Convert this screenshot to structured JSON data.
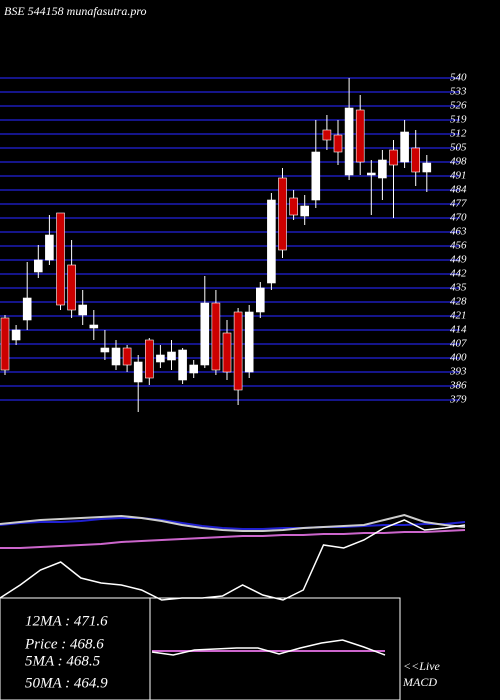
{
  "chart_data": [
    {
      "type": "candlestick",
      "title": "BSE 544158 munafasutra.pro",
      "ylim": [
        374,
        540.5
      ],
      "yticks": [
        540,
        533,
        526,
        519,
        512,
        505,
        498,
        491,
        484,
        477,
        470,
        463,
        456,
        449,
        442,
        435,
        428,
        421,
        414,
        407,
        400,
        393,
        386,
        379
      ],
      "grid": true,
      "grid_color": "#15158a",
      "up_color": "#ffffff",
      "down_color": "#cc0000",
      "open": [
        420,
        409,
        419,
        443,
        449,
        472.5,
        446.5,
        421.5,
        415,
        403,
        396.5,
        405,
        388,
        409,
        398,
        399,
        389,
        392.5,
        396.5,
        427.5,
        412.5,
        423,
        393,
        423,
        437.5,
        490,
        480,
        471,
        479,
        514,
        511.5,
        491.5,
        524,
        491.5,
        490,
        504,
        498,
        505,
        493
      ],
      "high": [
        421.5,
        416.5,
        448,
        456.5,
        471.5,
        472.5,
        459,
        434,
        424,
        414,
        409,
        406.5,
        401.5,
        410,
        406.5,
        409,
        405,
        399,
        441,
        434,
        419,
        425,
        426.5,
        438,
        482.5,
        495,
        484,
        481.5,
        519,
        521.5,
        519,
        540,
        531.5,
        499,
        504,
        509,
        519,
        514,
        501.5
      ],
      "low": [
        391.5,
        406.5,
        414,
        440,
        446.5,
        424,
        420,
        416.5,
        409,
        399,
        394,
        393,
        373,
        386.5,
        395,
        394,
        387,
        390,
        395,
        391.5,
        389,
        376.5,
        390,
        420,
        434,
        450,
        469,
        466.5,
        475,
        504,
        496.5,
        489,
        491.5,
        471.5,
        479,
        470,
        495,
        486,
        483
      ],
      "close": [
        394,
        414,
        430,
        449,
        461.5,
        426.5,
        424,
        426.5,
        416.5,
        405,
        405,
        396.5,
        398,
        390,
        401.5,
        403,
        404,
        396.5,
        427.5,
        394,
        393,
        384,
        423,
        435,
        479,
        454,
        471.5,
        476,
        503,
        509,
        503,
        525,
        498,
        492.5,
        499,
        496.5,
        513,
        493,
        497.5
      ]
    },
    {
      "type": "line",
      "ylim": [
        0,
        110
      ],
      "series": [
        {
          "color": "#2020d0",
          "values": [
            85,
            87,
            88,
            88,
            89,
            91,
            92,
            92,
            90,
            87,
            84,
            82,
            81,
            81,
            82,
            82,
            83,
            83,
            84,
            85,
            85,
            86,
            86,
            88
          ]
        },
        {
          "color": "#cccccc",
          "values": [
            86,
            88,
            90,
            91,
            92,
            93,
            94,
            92,
            89,
            85,
            82,
            80,
            79,
            79,
            80,
            82,
            83,
            84,
            85,
            90,
            95,
            88,
            85,
            83
          ]
        },
        {
          "color": "#cc66cc",
          "values": [
            62,
            62,
            63,
            64,
            65,
            66,
            68,
            69,
            70,
            71,
            72,
            73,
            74,
            74,
            75,
            75,
            76,
            76,
            77,
            77,
            78,
            78,
            79,
            80
          ]
        },
        {
          "color": "#ffffff",
          "values": [
            12,
            25,
            40,
            48,
            32,
            27,
            25,
            20,
            10,
            12,
            12,
            14,
            25,
            15,
            10,
            20,
            65,
            62,
            70,
            82,
            90,
            80,
            82,
            85
          ]
        }
      ]
    },
    {
      "type": "line",
      "ylim": [
        0,
        100
      ],
      "series": [
        {
          "color": "#cc66cc",
          "values": [
            49,
            49,
            49,
            49,
            49,
            49,
            49,
            49,
            49,
            49,
            49,
            49
          ]
        },
        {
          "color": "#ffffff",
          "values": [
            48,
            45,
            50,
            51,
            52,
            52,
            46,
            52,
            57,
            60,
            53,
            45
          ]
        }
      ]
    }
  ],
  "info": [
    "12MA : 471.6",
    "Price : 468.6",
    "5MA : 468.5",
    "50MA : 464.9"
  ],
  "macd_label": [
    "<<Live",
    "MACD"
  ]
}
